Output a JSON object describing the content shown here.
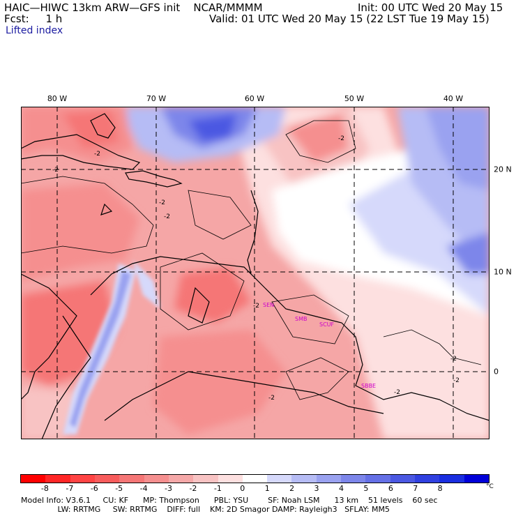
{
  "header": {
    "model": "HAIC—HIWC 13km ARW—GFS init    NCAR/MMMM",
    "fcst": "Fcst:     1 h",
    "init": "Init: 00 UTC Wed 20 May 15",
    "valid": "Valid: 01 UTC Wed 20 May 15 (22 LST Tue 19 May 15)",
    "field": "Lifted index"
  },
  "map": {
    "lon_labels": [
      "80 W",
      "70 W",
      "60 W",
      "50 W",
      "40 W"
    ],
    "lat_labels": [
      "20 N",
      "10 N",
      "0"
    ],
    "stations": [
      "SEN",
      "SMB",
      "SCUF",
      "SBBE"
    ],
    "contour_label": "-2",
    "colors": {
      "land_outline": "#000000",
      "station": "#cc00cc"
    }
  },
  "colorbar": {
    "ticks": [
      "-8",
      "-7",
      "-6",
      "-5",
      "-4",
      "-3",
      "-2",
      "-1",
      "0",
      "1",
      "2",
      "3",
      "4",
      "5",
      "6",
      "7",
      "8"
    ],
    "unit": "°C",
    "colors": [
      "#ff0000",
      "#ff2626",
      "#ff4444",
      "#f85c5c",
      "#f57676",
      "#f58f8f",
      "#f5a8a8",
      "#f8c3c3",
      "#fde0e0",
      "#ffffff",
      "#d6d9fb",
      "#b6bcf5",
      "#9aa2f0",
      "#7d86ea",
      "#6570e6",
      "#4b58e2",
      "#3040e0",
      "#1a2ee0",
      "#0000d8"
    ]
  },
  "footer": {
    "line1": "Model Info: V3.6.1     CU: KF      MP: Thompson      PBL: YSU        SF: Noah LSM      13 km    51 levels    60 sec",
    "line2": "               LW: RRTMG     SW: RRTMG    DIFF: full    KM: 2D Smagor DAMP: Rayleigh3   SFLAY: MM5"
  }
}
